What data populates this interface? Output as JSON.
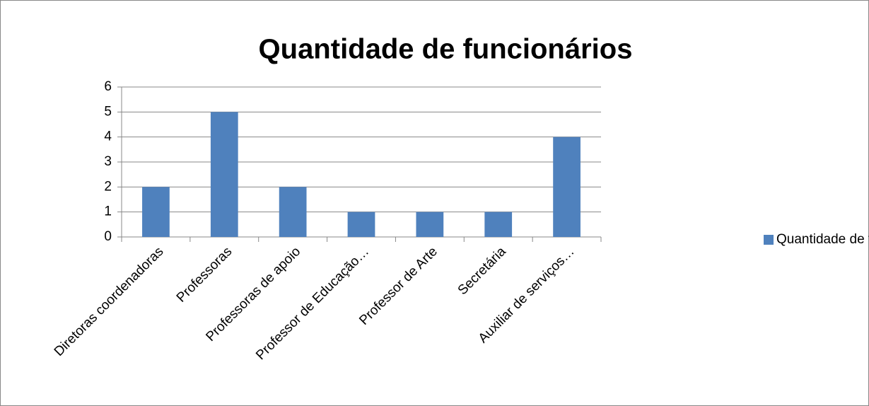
{
  "chart_data": {
    "type": "bar",
    "title": "Quantidade de funcionários",
    "categories": [
      "Diretoras coordenadoras",
      "Professoras",
      "Professoras de apoio",
      "Professor de Educação…",
      "Professor de Arte",
      "Secretária",
      "Auxiliar de serviços…"
    ],
    "series": [
      {
        "name": "Quantidade de funcionários",
        "color": "#4f81bd",
        "values": [
          2,
          5,
          2,
          1,
          1,
          1,
          4
        ]
      }
    ],
    "ylim": [
      0,
      6
    ],
    "yticks": [
      0,
      1,
      2,
      3,
      4,
      5,
      6
    ],
    "grid": true,
    "legend": "right"
  }
}
